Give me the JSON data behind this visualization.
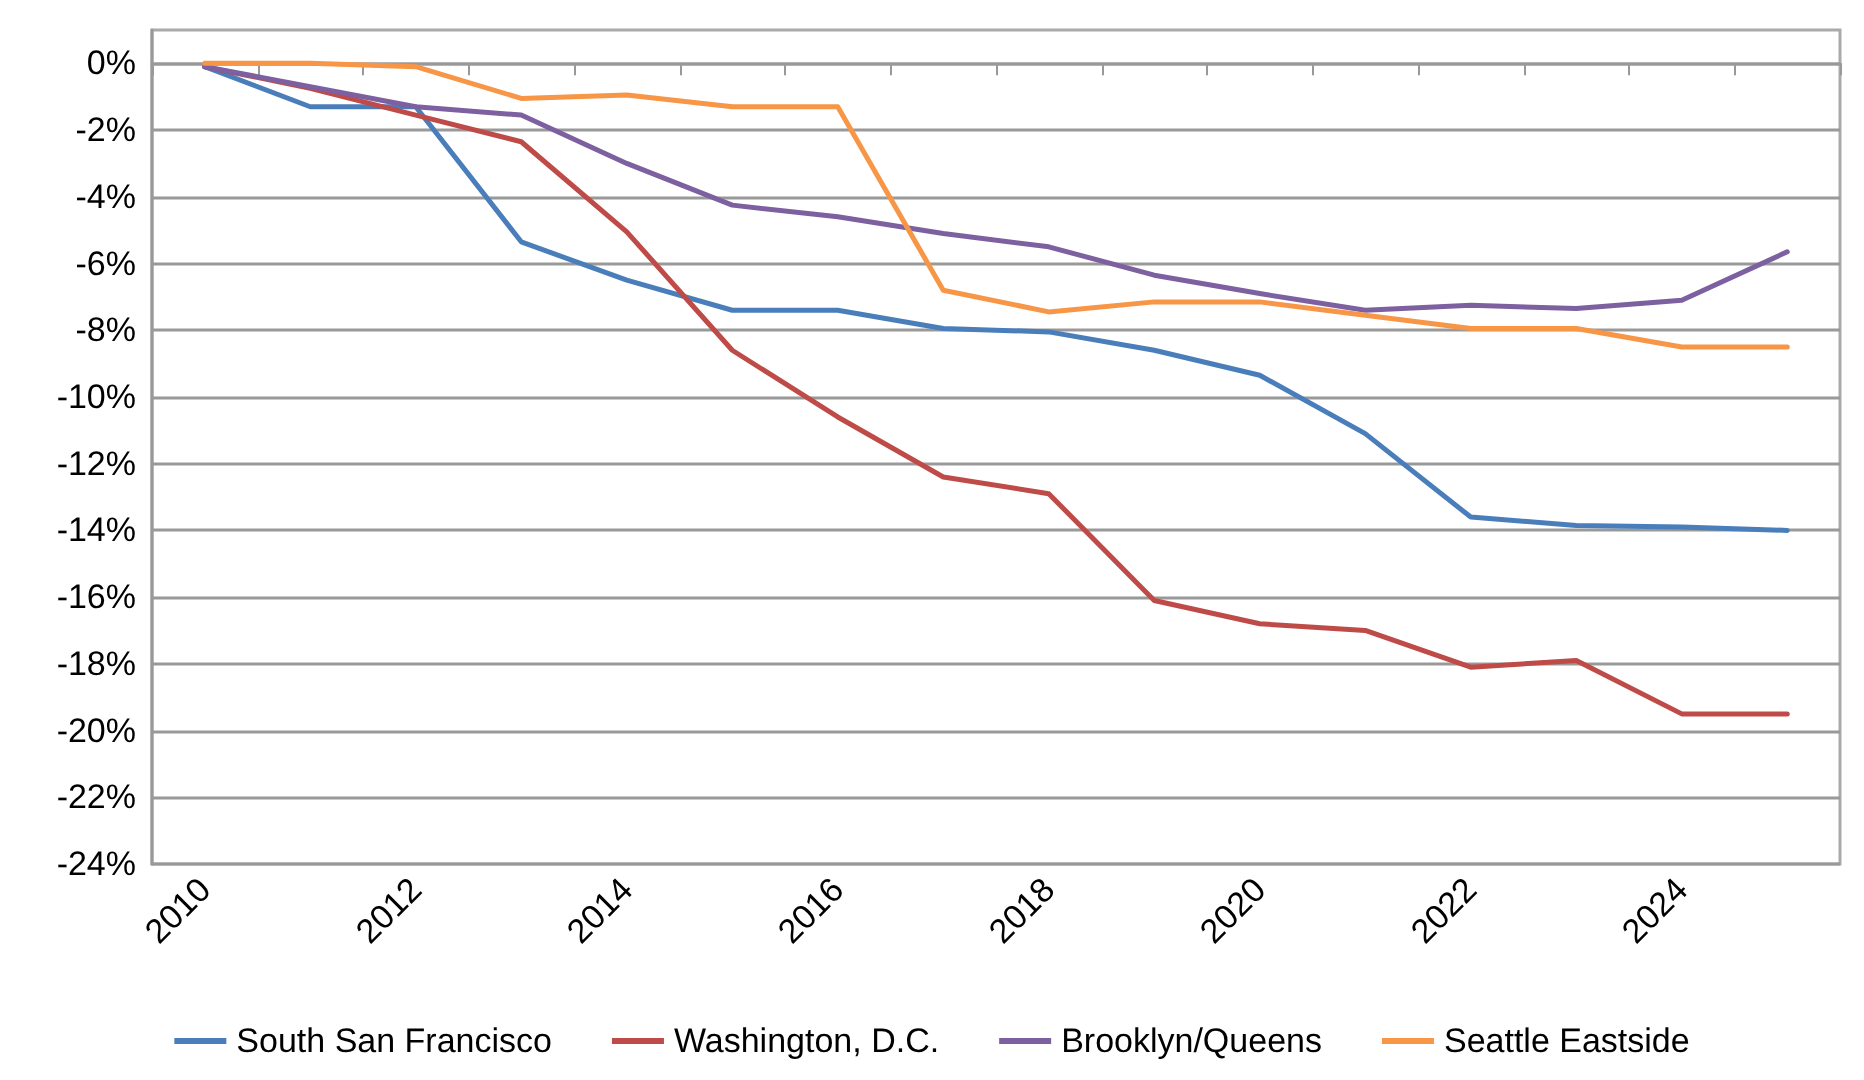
{
  "chart_data": {
    "type": "line",
    "categories": [
      "2010",
      null,
      "2012",
      null,
      "2014",
      null,
      "2016",
      null,
      "2018",
      null,
      "2020",
      null,
      "2022",
      null,
      "2024",
      null
    ],
    "series": [
      {
        "name": "South San Francisco",
        "color": "#4a7ebb",
        "values": [
          -0.1,
          -1.3,
          -1.3,
          -5.35,
          -6.5,
          -7.4,
          -7.4,
          -7.95,
          -8.05,
          -8.6,
          -9.35,
          -11.1,
          -13.6,
          -13.85,
          -13.9,
          -14.0
        ]
      },
      {
        "name": "Washington, D.C.",
        "color": "#be4b48",
        "values": [
          -0.1,
          -0.75,
          -1.55,
          -2.35,
          -5.05,
          -8.6,
          -10.6,
          -12.4,
          -12.9,
          -16.1,
          -16.8,
          -17.0,
          -18.1,
          -17.9,
          -19.5,
          -19.5
        ]
      },
      {
        "name": "Brooklyn/Queens",
        "color": "#7d60a0",
        "values": [
          -0.1,
          -0.7,
          -1.3,
          -1.55,
          -3.0,
          -4.25,
          -4.6,
          -5.1,
          -5.5,
          -6.35,
          -6.9,
          -7.4,
          -7.25,
          -7.35,
          -7.1,
          -5.65
        ]
      },
      {
        "name": "Seattle Eastside",
        "color": "#f79646",
        "values": [
          0,
          0,
          -0.1,
          -1.05,
          -0.95,
          -1.3,
          -1.3,
          -6.8,
          -7.45,
          -7.15,
          -7.15,
          -7.55,
          -7.95,
          -7.95,
          -8.5,
          -8.5
        ]
      }
    ],
    "ylim": [
      -24,
      1
    ],
    "yticks": [
      {
        "value": -24,
        "label": "-24%"
      },
      {
        "value": -22,
        "label": "-22%"
      },
      {
        "value": -20,
        "label": "-20%"
      },
      {
        "value": -18,
        "label": "-18%"
      },
      {
        "value": -16,
        "label": "-16%"
      },
      {
        "value": -14,
        "label": "-14%"
      },
      {
        "value": -12,
        "label": "-12%"
      },
      {
        "value": -10,
        "label": "-10%"
      },
      {
        "value": -8,
        "label": "-8%"
      },
      {
        "value": -6,
        "label": "-6%"
      },
      {
        "value": -4,
        "label": "-4%"
      },
      {
        "value": -2,
        "label": "-2%"
      },
      {
        "value": 0,
        "label": "0%"
      }
    ],
    "grid": "y",
    "legend": "bottom",
    "marker": "none",
    "line_style": "solid"
  }
}
